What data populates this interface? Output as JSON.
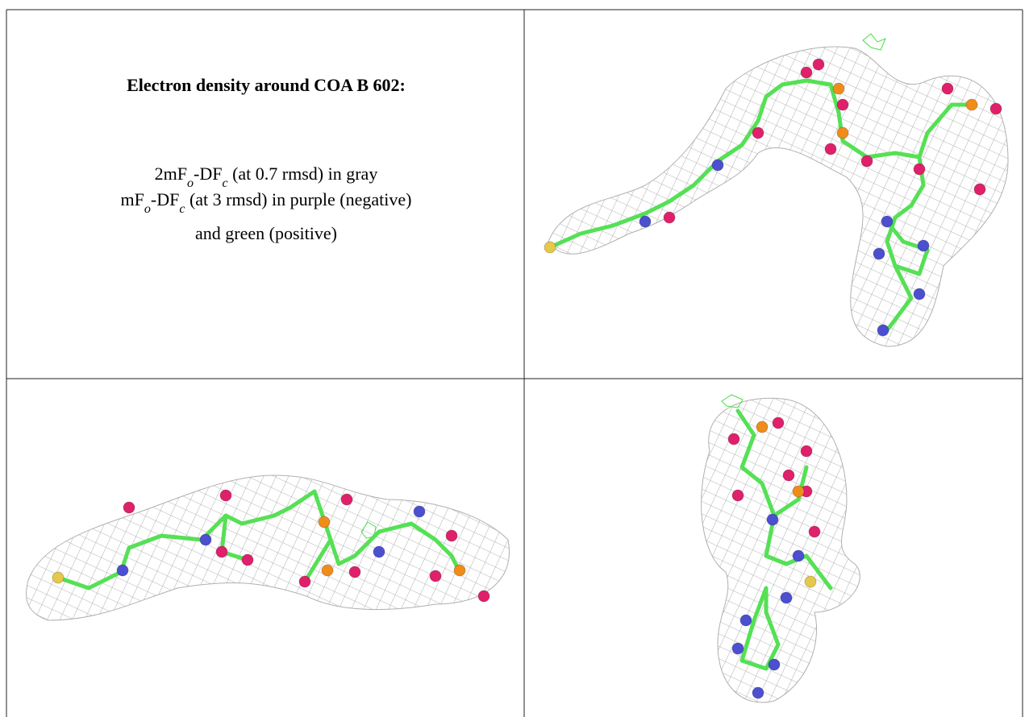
{
  "panel": {
    "title": "Electron density around COA B 602:",
    "lines": [
      [
        {
          "text": "2mF"
        },
        {
          "sub": "o"
        },
        {
          "text": "-DF"
        },
        {
          "sub": "c"
        },
        {
          "text": " (at 0.7 rmsd) in gray"
        }
      ],
      [
        {
          "text": "mF"
        },
        {
          "sub": "o"
        },
        {
          "text": "-DF"
        },
        {
          "sub": "c"
        },
        {
          "text": " (at 3 rmsd) in purple (negative)"
        }
      ],
      [
        {
          "text": "and green (positive)"
        }
      ]
    ]
  }
}
